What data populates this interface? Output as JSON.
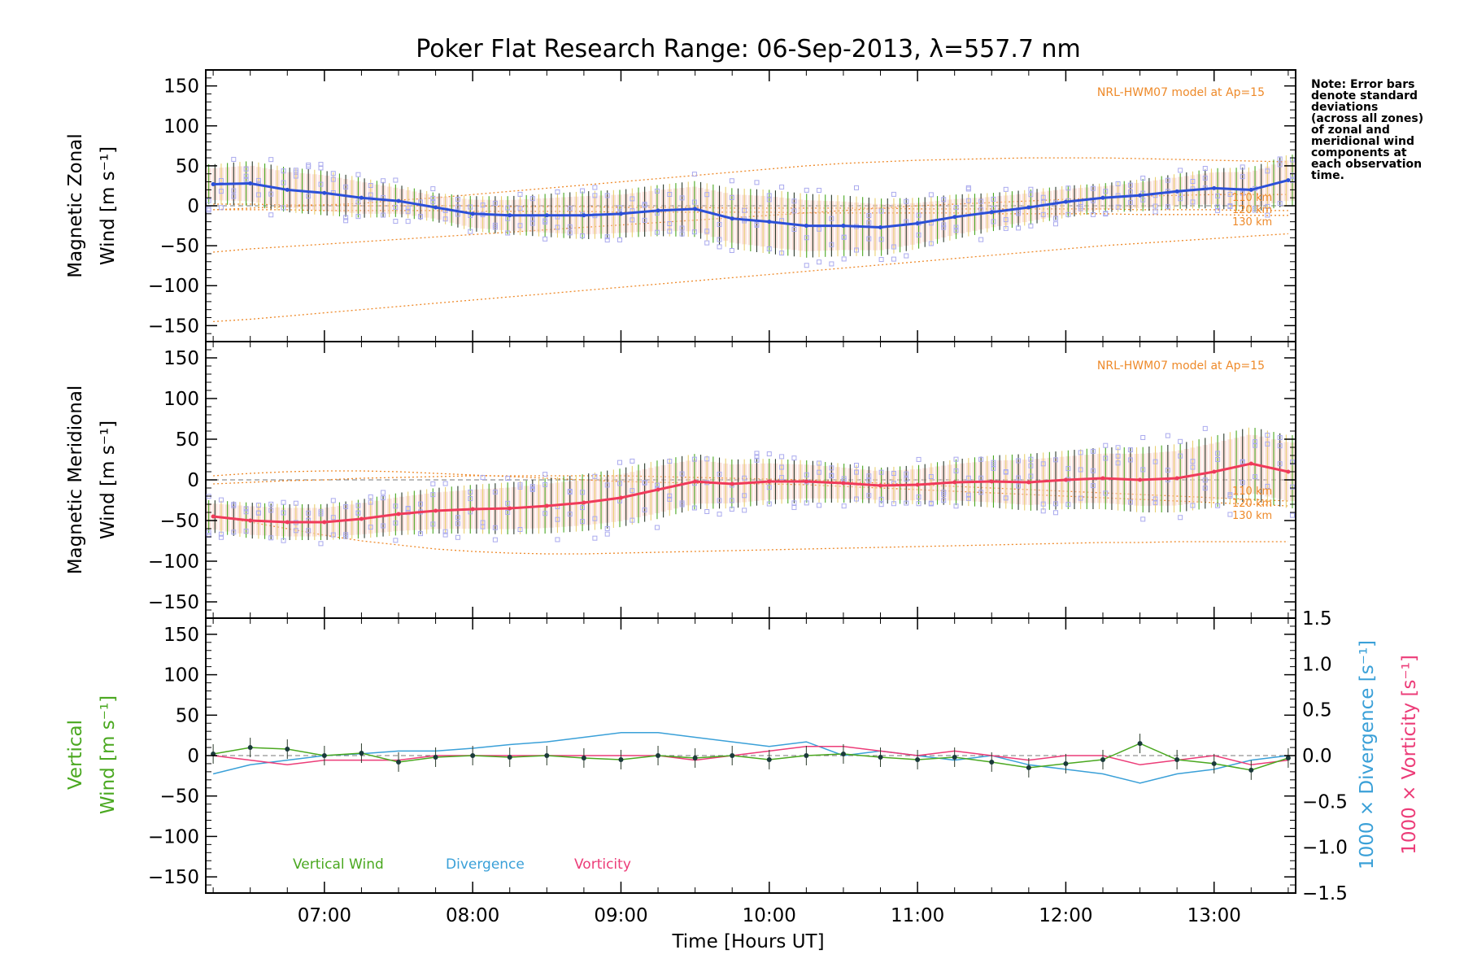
{
  "colors": {
    "zonal": "#2b4fd8",
    "meridional": "#f03a5a",
    "vertical": "#4aa820",
    "divergence": "#3aa0d8",
    "vorticity": "#ec3c78",
    "model": "#ee8a2a",
    "zone_points": "#aaaaee",
    "err_fill": "#f5c9c0",
    "err_bar": "#2a3a2a"
  },
  "chart_data": [
    {
      "type": "line",
      "title": "Poker Flat Research Range: 06-Sep-2013, λ=557.7 nm",
      "xlabel": "Time [Hours UT]",
      "ylabel_line1": "Magnetic Zonal",
      "ylabel_line2": "Wind [m s⁻¹]",
      "xlim": [
        6.2,
        13.55
      ],
      "ylim": [
        -170,
        170
      ],
      "x_ticks": [
        "07:00",
        "08:00",
        "09:00",
        "10:00",
        "11:00",
        "12:00",
        "13:00"
      ],
      "y_ticks": [
        "150",
        "100",
        "50",
        "0",
        "−50",
        "−100",
        "−150"
      ],
      "model_label": "NRL-HWM07 model at Ap=15",
      "model_altitudes": [
        "110 km",
        "120 km",
        "130 km"
      ],
      "note": [
        "Note: Error bars",
        "denote standard",
        "deviations",
        "(across all zones)",
        "of zonal and",
        "meridional wind",
        "components at",
        "each observation",
        "time."
      ],
      "x": [
        6.25,
        6.5,
        6.75,
        7.0,
        7.25,
        7.5,
        7.75,
        8.0,
        8.25,
        8.5,
        8.75,
        9.0,
        9.25,
        9.5,
        9.75,
        10.0,
        10.25,
        10.5,
        10.75,
        11.0,
        11.25,
        11.5,
        11.75,
        12.0,
        12.25,
        12.5,
        12.75,
        13.0,
        13.25,
        13.5
      ],
      "series": [
        {
          "name": "Zonal wind",
          "values": [
            27,
            28,
            20,
            16,
            10,
            6,
            -2,
            -10,
            -12,
            -12,
            -12,
            -10,
            -6,
            -4,
            -16,
            -20,
            -25,
            -25,
            -27,
            -22,
            -14,
            -8,
            -2,
            5,
            10,
            13,
            18,
            22,
            20,
            32
          ]
        },
        {
          "name": "Std dev",
          "values": [
            25,
            28,
            28,
            28,
            25,
            20,
            18,
            22,
            24,
            27,
            30,
            30,
            32,
            35,
            38,
            40,
            40,
            38,
            36,
            32,
            28,
            24,
            22,
            20,
            18,
            20,
            22,
            25,
            28,
            32
          ]
        },
        {
          "name": "HWM upper",
          "values": [
            -5,
            -3,
            -1,
            1,
            3,
            7,
            10,
            14,
            18,
            22,
            26,
            30,
            34,
            38,
            42,
            46,
            50,
            53,
            55,
            57,
            58,
            59,
            60,
            60,
            60,
            59,
            58,
            57,
            56,
            55
          ]
        },
        {
          "name": "HWM 110 km",
          "values": [
            2,
            2,
            1,
            1,
            0,
            0,
            0,
            0,
            -1,
            -1,
            -1,
            -2,
            -2,
            -2,
            -3,
            -3,
            -3,
            -3,
            -3,
            -4,
            -4,
            -4,
            -4,
            -4,
            -4,
            -5,
            -5,
            -5,
            -6,
            -6
          ]
        },
        {
          "name": "HWM 120 km",
          "values": [
            -5,
            -5,
            -5,
            -6,
            -6,
            -6,
            -6,
            -7,
            -7,
            -7,
            -7,
            -8,
            -8,
            -8,
            -8,
            -8,
            -9,
            -9,
            -9,
            -9,
            -9,
            -10,
            -10,
            -10,
            -10,
            -11,
            -11,
            -11,
            -12,
            -12
          ]
        },
        {
          "name": "HWM middle",
          "values": [
            -58,
            -54,
            -51,
            -48,
            -45,
            -42,
            -39,
            -36,
            -33,
            -30,
            -27,
            -24,
            -21,
            -18,
            -15,
            -12,
            -9,
            -6,
            -3,
            0,
            2,
            4,
            6,
            8,
            10,
            12,
            13,
            14,
            14,
            14
          ]
        },
        {
          "name": "HWM lower",
          "values": [
            -145,
            -142,
            -138,
            -134,
            -130,
            -126,
            -122,
            -118,
            -114,
            -110,
            -106,
            -102,
            -98,
            -94,
            -90,
            -86,
            -82,
            -78,
            -74,
            -70,
            -66,
            -62,
            -58,
            -54,
            -50,
            -47,
            -44,
            -41,
            -38,
            -35
          ]
        }
      ]
    },
    {
      "type": "line",
      "ylabel_line1": "Magnetic Meridional",
      "ylabel_line2": "Wind [m s⁻¹]",
      "xlim": [
        6.2,
        13.55
      ],
      "ylim": [
        -170,
        170
      ],
      "y_ticks": [
        "150",
        "100",
        "50",
        "0",
        "−50",
        "−100",
        "−150"
      ],
      "model_label": "NRL-HWM07 model at Ap=15",
      "model_altitudes": [
        "110 km",
        "120 km",
        "130 km"
      ],
      "x": [
        6.25,
        6.5,
        6.75,
        7.0,
        7.25,
        7.5,
        7.75,
        8.0,
        8.25,
        8.5,
        8.75,
        9.0,
        9.25,
        9.5,
        9.75,
        10.0,
        10.25,
        10.5,
        10.75,
        11.0,
        11.25,
        11.5,
        11.75,
        12.0,
        12.25,
        12.5,
        12.75,
        13.0,
        13.25,
        13.5
      ],
      "series": [
        {
          "name": "Meridional wind",
          "values": [
            -45,
            -50,
            -52,
            -52,
            -48,
            -42,
            -38,
            -36,
            -35,
            -32,
            -28,
            -22,
            -12,
            -2,
            -5,
            -2,
            -2,
            -4,
            -7,
            -6,
            -3,
            -2,
            -3,
            0,
            2,
            0,
            2,
            10,
            20,
            10
          ]
        },
        {
          "name": "Std dev",
          "values": [
            20,
            22,
            22,
            22,
            24,
            26,
            28,
            30,
            32,
            34,
            35,
            36,
            36,
            34,
            30,
            28,
            26,
            24,
            22,
            24,
            28,
            32,
            35,
            36,
            38,
            40,
            42,
            44,
            45,
            45
          ]
        },
        {
          "name": "HWM upper",
          "values": [
            5,
            8,
            10,
            11,
            11,
            10,
            8,
            6,
            4,
            2,
            0,
            -2,
            -3,
            -4,
            -5,
            -5,
            -6,
            -8,
            -10,
            -12,
            -14,
            -16,
            -18,
            -20,
            -22,
            -24,
            -26,
            -28,
            -30,
            -32
          ]
        },
        {
          "name": "HWM 110 km",
          "values": [
            -5,
            -3,
            -1,
            0,
            2,
            3,
            4,
            5,
            5,
            5,
            5,
            5,
            4,
            3,
            2,
            1,
            0,
            -2,
            -4,
            -6,
            -8,
            -10,
            -12,
            -14,
            -16,
            -18,
            -20,
            -22,
            -24,
            -26
          ]
        },
        {
          "name": "HWM lower",
          "values": [
            -45,
            -52,
            -60,
            -68,
            -75,
            -80,
            -85,
            -88,
            -90,
            -91,
            -91,
            -90,
            -89,
            -88,
            -87,
            -86,
            -85,
            -84,
            -83,
            -82,
            -81,
            -80,
            -79,
            -78,
            -77,
            -77,
            -76,
            -76,
            -76,
            -76
          ]
        }
      ]
    },
    {
      "type": "line",
      "xlabel": "Time [Hours UT]",
      "ylabel_line1": "Vertical",
      "ylabel_line2": "Wind [m s⁻¹]",
      "right_label_div": "1000 × Divergence [s⁻¹]",
      "right_label_vor": "1000 × Vorticity [s⁻¹]",
      "xlim": [
        6.2,
        13.55
      ],
      "ylim": [
        -170,
        170
      ],
      "ylim_right": [
        -1.5,
        1.5
      ],
      "x_ticks": [
        "07:00",
        "08:00",
        "09:00",
        "10:00",
        "11:00",
        "12:00",
        "13:00"
      ],
      "y_ticks": [
        "150",
        "100",
        "50",
        "0",
        "−50",
        "−100",
        "−150"
      ],
      "y_ticks_right": [
        "1.5",
        "1.0",
        "0.5",
        "0.0",
        "−0.5",
        "−1.0",
        "−1.5"
      ],
      "legend": [
        "Vertical Wind",
        "Divergence",
        "Vorticity"
      ],
      "x": [
        6.25,
        6.5,
        6.75,
        7.0,
        7.25,
        7.5,
        7.75,
        8.0,
        8.25,
        8.5,
        8.75,
        9.0,
        9.25,
        9.5,
        9.75,
        10.0,
        10.25,
        10.5,
        10.75,
        11.0,
        11.25,
        11.5,
        11.75,
        12.0,
        12.25,
        12.5,
        12.75,
        13.0,
        13.25,
        13.5
      ],
      "series": [
        {
          "name": "Vertical Wind",
          "values": [
            2,
            10,
            8,
            0,
            3,
            -8,
            -2,
            0,
            -2,
            0,
            -3,
            -5,
            0,
            -3,
            0,
            -5,
            0,
            2,
            -2,
            -5,
            -2,
            -8,
            -15,
            -10,
            -5,
            15,
            -5,
            -10,
            -18,
            -3
          ]
        },
        {
          "name": "Divergence",
          "values": [
            -0.2,
            -0.1,
            -0.05,
            0.0,
            0.02,
            0.05,
            0.05,
            0.08,
            0.12,
            0.15,
            0.2,
            0.25,
            0.25,
            0.2,
            0.15,
            0.1,
            0.15,
            0.0,
            0.05,
            0.0,
            -0.05,
            0.0,
            -0.1,
            -0.15,
            -0.2,
            -0.3,
            -0.2,
            -0.15,
            -0.05,
            0.0
          ]
        },
        {
          "name": "Vorticity",
          "values": [
            0.0,
            -0.05,
            -0.1,
            -0.05,
            -0.05,
            -0.05,
            0.0,
            0.0,
            0.0,
            0.0,
            0.0,
            0.0,
            0.0,
            -0.05,
            0.0,
            0.05,
            0.1,
            0.1,
            0.05,
            0.0,
            0.05,
            0.0,
            -0.05,
            0.0,
            0.0,
            -0.1,
            -0.05,
            0.0,
            -0.1,
            -0.05
          ]
        }
      ]
    }
  ]
}
